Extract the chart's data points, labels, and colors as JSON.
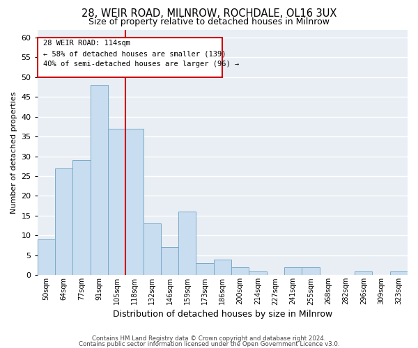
{
  "title": "28, WEIR ROAD, MILNROW, ROCHDALE, OL16 3UX",
  "subtitle": "Size of property relative to detached houses in Milnrow",
  "xlabel": "Distribution of detached houses by size in Milnrow",
  "ylabel": "Number of detached properties",
  "bar_labels": [
    "50sqm",
    "64sqm",
    "77sqm",
    "91sqm",
    "105sqm",
    "118sqm",
    "132sqm",
    "146sqm",
    "159sqm",
    "173sqm",
    "186sqm",
    "200sqm",
    "214sqm",
    "227sqm",
    "241sqm",
    "255sqm",
    "268sqm",
    "282sqm",
    "296sqm",
    "309sqm",
    "323sqm"
  ],
  "bar_values": [
    9,
    27,
    29,
    48,
    37,
    37,
    13,
    7,
    16,
    3,
    4,
    2,
    1,
    0,
    2,
    2,
    0,
    0,
    1,
    0,
    1
  ],
  "bar_color": "#c8ddf0",
  "bar_edge_color": "#7aaac8",
  "ylim": [
    0,
    62
  ],
  "yticks": [
    0,
    5,
    10,
    15,
    20,
    25,
    30,
    35,
    40,
    45,
    50,
    55,
    60
  ],
  "vline_x_index": 4.5,
  "vline_color": "#cc0000",
  "annotation_line1": "28 WEIR ROAD: 114sqm",
  "annotation_line2": "← 58% of detached houses are smaller (139)",
  "annotation_line3": "40% of semi-detached houses are larger (96) →",
  "footer_line1": "Contains HM Land Registry data © Crown copyright and database right 2024.",
  "footer_line2": "Contains public sector information licensed under the Open Government Licence v3.0.",
  "background_color": "#ffffff",
  "plot_bg_color": "#e8eef4",
  "grid_color": "#ffffff"
}
